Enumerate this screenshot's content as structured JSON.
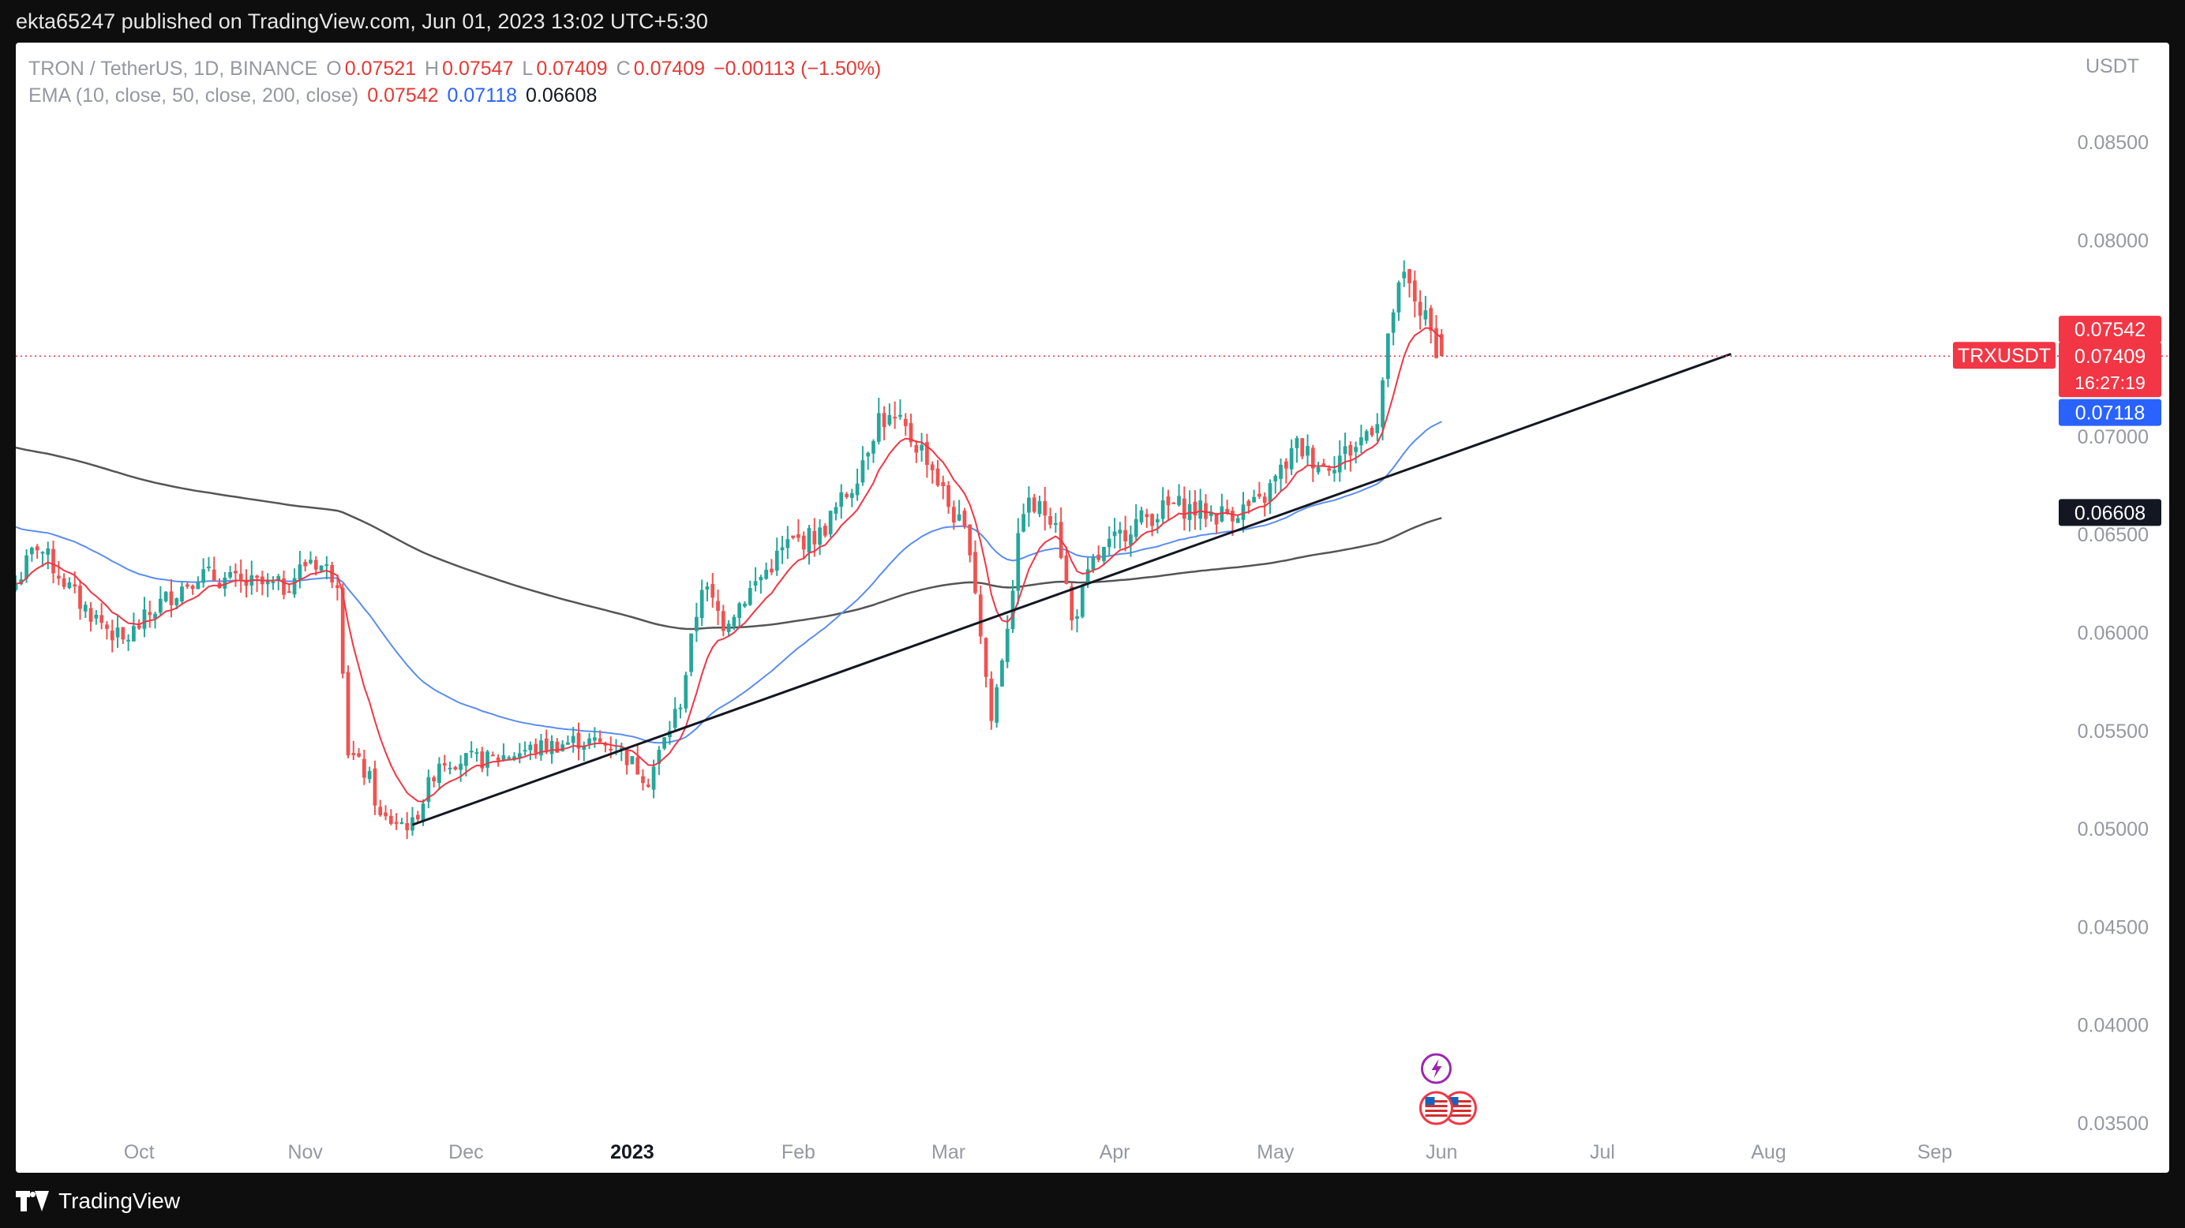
{
  "header": {
    "published": "ekta65247 published on TradingView.com, Jun 01, 2023 13:02 UTC+5:30"
  },
  "legend": {
    "symbol": "TRON / TetherUS, 1D, BINANCE",
    "o_label": "O",
    "o_val": "0.07521",
    "h_label": "H",
    "h_val": "0.07547",
    "l_label": "L",
    "l_val": "0.07409",
    "c_label": "C",
    "c_val": "0.07409",
    "change": "−0.00113 (−1.50%)",
    "ema_label": "EMA (10, close, 50, close, 200, close)",
    "ema10": "0.07542",
    "ema50": "0.07118",
    "ema200": "0.06608"
  },
  "price_axis": {
    "currency": "USDT",
    "labels": [
      "0.08500",
      "0.08000",
      "0.07500",
      "0.07000",
      "0.06500",
      "0.06000",
      "0.05500",
      "0.05000",
      "0.04500",
      "0.04000",
      "0.03500"
    ]
  },
  "tags": {
    "ema10": "0.07542",
    "symbol": "TRXUSDT",
    "last": "0.07409",
    "countdown": "16:27:19",
    "ema50": "0.07118",
    "ema200": "0.06608"
  },
  "time_axis": {
    "labels": [
      "Oct",
      "Nov",
      "Dec",
      "2023",
      "Feb",
      "Mar",
      "Apr",
      "May",
      "Jun",
      "Jul",
      "Aug",
      "Sep"
    ]
  },
  "footer": {
    "brand": "TradingView"
  },
  "colors": {
    "up": "#26a69a",
    "down": "#ef5350",
    "ema10": "#f23645",
    "ema50": "#5b8def",
    "ema200": "#555555",
    "trend": "#131722"
  },
  "icons": [
    "lightning-event-icon",
    "us-flag-icon"
  ],
  "chart_data": {
    "type": "candlestick",
    "title": "TRON / TetherUS, 1D, BINANCE",
    "ylabel": "USDT",
    "ylim": [
      0.035,
      0.087
    ],
    "x_range": [
      "2022-09-08",
      "2023-09-20"
    ],
    "last_price": 0.07409,
    "ohlc_last": {
      "open": 0.07521,
      "high": 0.07547,
      "low": 0.07409,
      "close": 0.07409
    },
    "close_anchors": [
      [
        "2022-09-08",
        0.0625
      ],
      [
        "2022-09-12",
        0.0645
      ],
      [
        "2022-09-20",
        0.0615
      ],
      [
        "2022-09-28",
        0.0595
      ],
      [
        "2022-10-05",
        0.0615
      ],
      [
        "2022-10-12",
        0.063
      ],
      [
        "2022-10-20",
        0.0625
      ],
      [
        "2022-10-28",
        0.0623
      ],
      [
        "2022-11-02",
        0.0638
      ],
      [
        "2022-11-07",
        0.0628
      ],
      [
        "2022-11-09",
        0.054
      ],
      [
        "2022-11-13",
        0.0525
      ],
      [
        "2022-11-15",
        0.0505
      ],
      [
        "2022-11-21",
        0.0502
      ],
      [
        "2022-11-26",
        0.0535
      ],
      [
        "2022-12-05",
        0.0535
      ],
      [
        "2022-12-12",
        0.054
      ],
      [
        "2022-12-22",
        0.0545
      ],
      [
        "2022-12-29",
        0.0542
      ],
      [
        "2023-01-04",
        0.0525
      ],
      [
        "2023-01-10",
        0.0565
      ],
      [
        "2023-01-14",
        0.0625
      ],
      [
        "2023-01-18",
        0.0605
      ],
      [
        "2023-01-24",
        0.0625
      ],
      [
        "2023-01-30",
        0.0645
      ],
      [
        "2023-02-05",
        0.065
      ],
      [
        "2023-02-11",
        0.0675
      ],
      [
        "2023-02-16",
        0.071
      ],
      [
        "2023-02-20",
        0.0705
      ],
      [
        "2023-02-25",
        0.069
      ],
      [
        "2023-03-01",
        0.0665
      ],
      [
        "2023-03-05",
        0.0645
      ],
      [
        "2023-03-09",
        0.0555
      ],
      [
        "2023-03-12",
        0.0605
      ],
      [
        "2023-03-15",
        0.0665
      ],
      [
        "2023-03-21",
        0.066
      ],
      [
        "2023-03-24",
        0.0605
      ],
      [
        "2023-03-28",
        0.0635
      ],
      [
        "2023-04-04",
        0.0655
      ],
      [
        "2023-04-12",
        0.0665
      ],
      [
        "2023-04-20",
        0.066
      ],
      [
        "2023-04-28",
        0.0665
      ],
      [
        "2023-05-05",
        0.0695
      ],
      [
        "2023-05-10",
        0.0685
      ],
      [
        "2023-05-16",
        0.0695
      ],
      [
        "2023-05-20",
        0.071
      ],
      [
        "2023-05-23",
        0.0765
      ],
      [
        "2023-05-25",
        0.078
      ],
      [
        "2023-05-28",
        0.0765
      ],
      [
        "2023-05-30",
        0.0752
      ],
      [
        "2023-06-01",
        0.07409
      ]
    ],
    "series": [
      {
        "name": "EMA 10",
        "color": "#f23645"
      },
      {
        "name": "EMA 50",
        "color": "#5b8def"
      },
      {
        "name": "EMA 200",
        "color": "#555555"
      }
    ],
    "trendline": {
      "from": [
        "2022-11-21",
        0.0502
      ],
      "to": [
        "2023-07-25",
        0.0742
      ]
    },
    "grid": false
  }
}
